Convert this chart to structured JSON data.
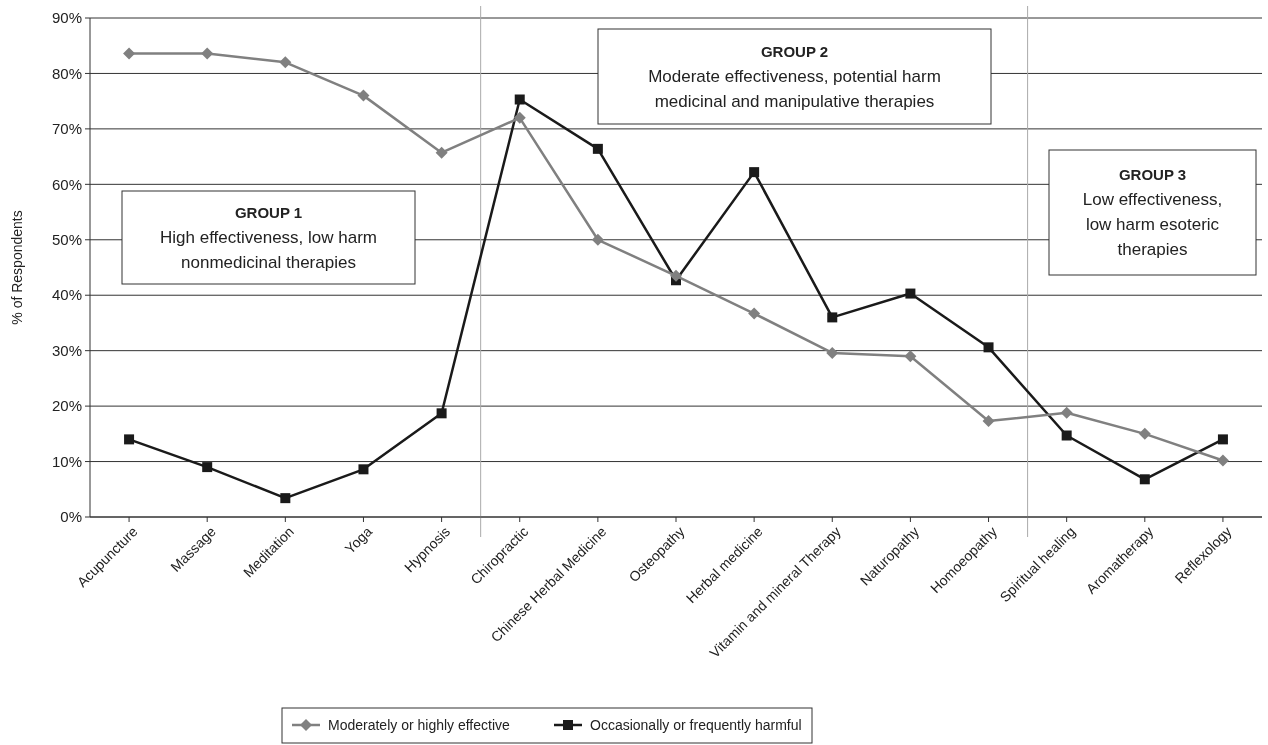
{
  "chart_data": {
    "type": "line",
    "ylabel": "% of Respondents",
    "categories": [
      "Acupuncture",
      "Massage",
      "Meditation",
      "Yoga",
      "Hypnosis",
      "Chiropractic",
      "Chinese Herbal Medicine",
      "Osteopathy",
      "Herbal medicine",
      "Vitamin and mineral Therapy",
      "Naturopathy",
      "Homoeopathy",
      "Spiritual healing",
      "Aromatherapy",
      "Reflexology"
    ],
    "series": [
      {
        "name": "Moderately or highly effective",
        "color": "#808080",
        "marker": "diamond",
        "values": [
          83.6,
          83.6,
          82,
          76,
          65.7,
          72,
          50,
          43.5,
          36.7,
          29.6,
          29,
          17.3,
          18.8,
          15,
          10.2
        ]
      },
      {
        "name": "Occasionally or frequently harmful",
        "color": "#1a1a1a",
        "marker": "square",
        "values": [
          14,
          9,
          3.4,
          8.6,
          18.7,
          75.3,
          66.4,
          42.7,
          62.2,
          36,
          40.3,
          30.6,
          14.7,
          6.8,
          14
        ]
      }
    ],
    "ylim": [
      0,
      90
    ],
    "yticks": [
      {
        "value": 0,
        "label": "0%"
      },
      {
        "value": 10,
        "label": "10%"
      },
      {
        "value": 20,
        "label": "20%"
      },
      {
        "value": 30,
        "label": "30%"
      },
      {
        "value": 40,
        "label": "40%"
      },
      {
        "value": 50,
        "label": "50%"
      },
      {
        "value": 60,
        "label": "60%"
      },
      {
        "value": 70,
        "label": "70%"
      },
      {
        "value": 80,
        "label": "80%"
      },
      {
        "value": 90,
        "label": "90%"
      }
    ],
    "grid": "y",
    "legend": "bottom",
    "line_style": "solid",
    "annotations": [
      "GROUP 1\nHigh effectiveness, low harm\nnonmedicinal therapies",
      "GROUP 2\nModerate effectiveness, potential harm\nmedicinal and manipulative therapies",
      "GROUP 3\nLow effectiveness,\nlow harm esoteric\ntherapies"
    ]
  }
}
